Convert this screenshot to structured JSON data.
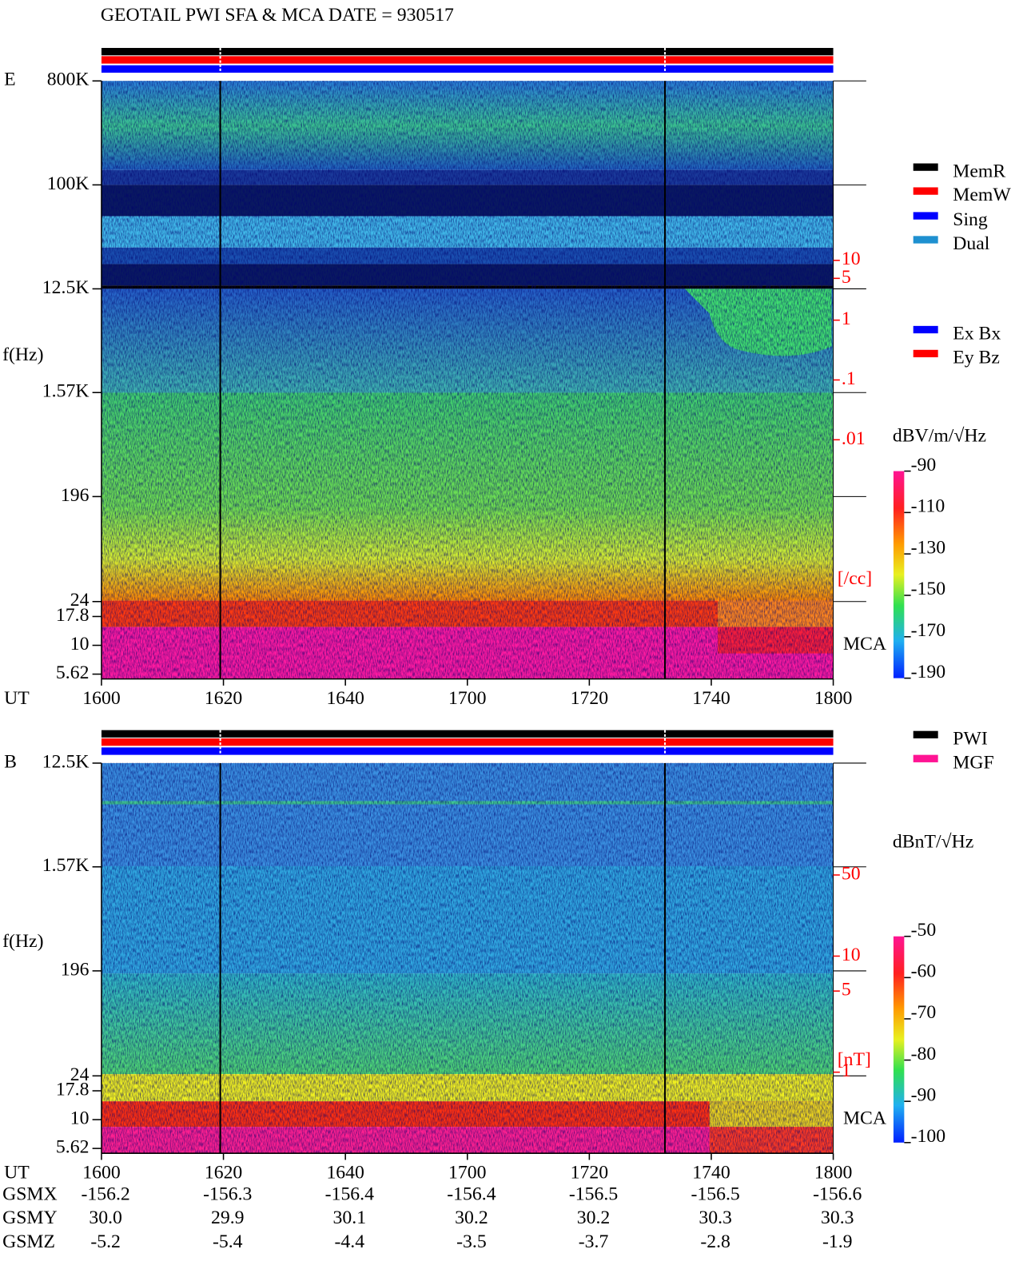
{
  "title": "GEOTAIL  PWI SFA & MCA   DATE = 930517",
  "legend": {
    "modes": [
      {
        "name": "MemR",
        "color": "#000000"
      },
      {
        "name": "MemW",
        "color": "#ff0000"
      },
      {
        "name": "Sing",
        "color": "#0000ff"
      },
      {
        "name": "Dual",
        "color": "#1e90d0"
      }
    ],
    "components": [
      {
        "name": "Ex Bx",
        "color": "#0000ff"
      },
      {
        "name": "Ey Bz",
        "color": "#ff0000"
      }
    ],
    "instruments": [
      {
        "name": "PWI",
        "color": "#000000"
      },
      {
        "name": "MGF",
        "color": "#ff1493"
      }
    ]
  },
  "chart_data": [
    {
      "type": "spectrogram",
      "panel_label": "E",
      "ylabel": "f(Hz)",
      "xlabel": "UT",
      "mca_label": "MCA",
      "log_y": true,
      "xlim": [
        960,
        1080
      ],
      "xticks": [
        {
          "value": 960,
          "label": "1600"
        },
        {
          "value": 980,
          "label": "1620"
        },
        {
          "value": 1000,
          "label": "1640"
        },
        {
          "value": 1020,
          "label": "1700"
        },
        {
          "value": 1040,
          "label": "1720"
        },
        {
          "value": 1060,
          "label": "1740"
        },
        {
          "value": 1080,
          "label": "1800"
        }
      ],
      "ylim": [
        5.1,
        800000
      ],
      "yticks": [
        {
          "value": 800000,
          "label": "800K"
        },
        {
          "value": 100000,
          "label": "100K"
        },
        {
          "value": 12500,
          "label": "12.5K"
        },
        {
          "value": 1570,
          "label": "1.57K"
        },
        196,
        24,
        17.8,
        10,
        5.62
      ],
      "y2_label": "[/cc]",
      "y2_log": true,
      "y2lim": [
        1e-06,
        10000
      ],
      "y2ticks": [
        10,
        5,
        1,
        {
          "value": 0.1,
          "label": ".1"
        },
        {
          "value": 0.01,
          "label": ".01"
        }
      ],
      "colorbar": {
        "label": "dBV/m/√Hz",
        "lim": [
          -190,
          -90
        ],
        "ticks": [
          -90,
          -110,
          -130,
          -150,
          -170,
          -190
        ]
      }
    },
    {
      "type": "spectrogram",
      "panel_label": "B",
      "ylabel": "f(Hz)",
      "xlabel": "UT",
      "mca_label": "MCA",
      "log_y": true,
      "xlim": [
        960,
        1080
      ],
      "xticks": [
        {
          "value": 960,
          "label": "1600"
        },
        {
          "value": 980,
          "label": "1620"
        },
        {
          "value": 1000,
          "label": "1640"
        },
        {
          "value": 1020,
          "label": "1700"
        },
        {
          "value": 1040,
          "label": "1720"
        },
        {
          "value": 1060,
          "label": "1740"
        },
        {
          "value": 1080,
          "label": "1800"
        }
      ],
      "ylim": [
        5.1,
        12500
      ],
      "yticks": [
        {
          "value": 12500,
          "label": "12.5K"
        },
        {
          "value": 1570,
          "label": "1.57K"
        },
        196,
        24,
        17.8,
        10,
        5.62
      ],
      "y2_label": "[nT]",
      "y2_log": true,
      "y2lim": [
        0.2,
        460
      ],
      "y2ticks": [
        50,
        10,
        5,
        1
      ],
      "colorbar": {
        "label": "dBnT/√Hz",
        "lim": [
          -100,
          -50
        ],
        "ticks": [
          -50,
          -60,
          -70,
          -80,
          -90,
          -100
        ]
      }
    }
  ],
  "orbit": {
    "rows": [
      {
        "label": "GSMX",
        "values": [
          "-156.2",
          "-156.3",
          "-156.4",
          "-156.4",
          "-156.5",
          "-156.5",
          "-156.6"
        ]
      },
      {
        "label": "GSMY",
        "values": [
          "30.0",
          "29.9",
          "30.1",
          "30.2",
          "30.2",
          "30.3",
          "30.3"
        ]
      },
      {
        "label": "GSMZ",
        "values": [
          "-5.2",
          "-5.4",
          "-4.4",
          "-3.5",
          "-3.7",
          "-2.8",
          "-1.9"
        ]
      }
    ]
  }
}
